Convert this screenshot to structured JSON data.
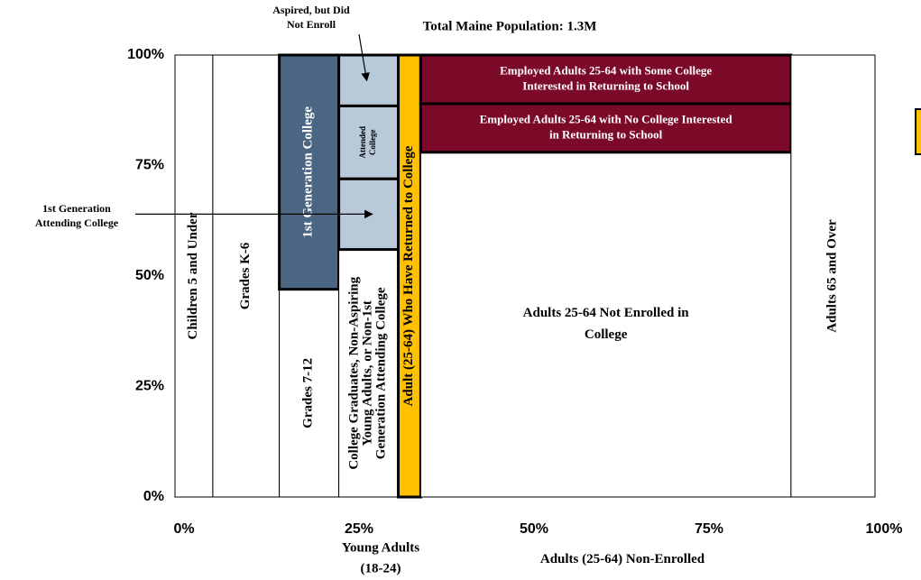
{
  "chart_data": {
    "type": "mekko",
    "subtitle": "Total Maine Population:  1.3M",
    "xlim": [
      0,
      100
    ],
    "ylim": [
      0,
      100
    ],
    "xticks": [
      {
        "value": 0,
        "label": "0%"
      },
      {
        "value": 25,
        "label": "25%"
      },
      {
        "value": 50,
        "label": "50%"
      },
      {
        "value": 75,
        "label": "75%"
      },
      {
        "value": 100,
        "label": "100%"
      }
    ],
    "yticks": [
      {
        "value": 0,
        "label": "0%"
      },
      {
        "value": 25,
        "label": "25%"
      },
      {
        "value": 50,
        "label": "50%"
      },
      {
        "value": 75,
        "label": "75%"
      },
      {
        "value": 100,
        "label": "100%"
      }
    ],
    "columns": [
      {
        "width": 5.4,
        "segments": [
          {
            "label": [
              "Children 5 and Under"
            ],
            "value": 100,
            "color": "#ffffff"
          }
        ]
      },
      {
        "width": 9.5,
        "segments": [
          {
            "label": [
              "Grades K-6"
            ],
            "value": 100,
            "color": "#ffffff"
          }
        ]
      },
      {
        "width": 8.5,
        "segments": [
          {
            "label": [
              "Grades 7-12"
            ],
            "value": 47,
            "color": "#ffffff"
          },
          {
            "label": [
              "1st Generation College"
            ],
            "value": 53,
            "color": "#4a6682",
            "text_color": "#ffffff"
          }
        ]
      },
      {
        "width": 8.5,
        "segments": [
          {
            "label": [
              "College Graduates, Non-Aspiring",
              "Young Adults, or Non-1st",
              "Generation Attending College"
            ],
            "value": 56,
            "color": "#ffffff"
          },
          {
            "value": 16,
            "color": "#b8c9da"
          },
          {
            "label": [
              "Attended",
              "College"
            ],
            "value": 16.5,
            "color": "#b8c9da"
          },
          {
            "value": 11.5,
            "color": "#b8c9da"
          }
        ]
      },
      {
        "width": 3.2,
        "segments": [
          {
            "label": [
              "Adult (25-64) Who Have Returned to College"
            ],
            "value": 100,
            "color": "#ffc000"
          }
        ]
      },
      {
        "width": 52.9,
        "segments": [
          {
            "label": [
              "Adults 25-64 Not Enrolled in",
              "College"
            ],
            "value": 78,
            "color": "#ffffff"
          },
          {
            "label": [
              "Employed Adults 25-64 with No College Interested",
              "in Returning to School"
            ],
            "value": 11,
            "color": "#7b0a28",
            "text_color": "#ffffff"
          },
          {
            "label": [
              "Employed Adults 25-64 with Some College",
              "Interested in Returning to School"
            ],
            "value": 11,
            "color": "#7b0a28",
            "text_color": "#ffffff"
          }
        ]
      },
      {
        "width": 12,
        "segments": [
          {
            "label": [
              "Adults 65 and Over"
            ],
            "value": 100,
            "color": "#ffffff"
          }
        ]
      }
    ],
    "annotations": [
      [
        "Aspired, but Did",
        "Not Enroll"
      ],
      [
        "1st Generation",
        "Attending College"
      ]
    ],
    "group_labels": [
      [
        "Young Adults",
        "(18-24)"
      ],
      [
        "Adults (25-64) Non-Enrolled"
      ]
    ]
  }
}
